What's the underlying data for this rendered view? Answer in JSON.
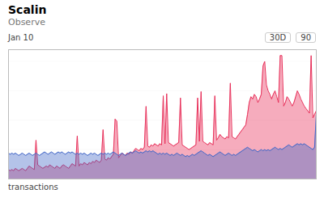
{
  "chart_data": {
    "type": "area",
    "title": "Scalin",
    "subtitle": "Observe",
    "ylabel": "transactions",
    "annotations": [
      "Jan 10",
      "30D",
      "90"
    ],
    "series": [
      {
        "color": "#e8305a",
        "values": [
          0.08,
          0.07,
          0.08,
          0.07,
          0.09,
          0.08,
          0.07,
          0.08,
          0.09,
          0.08,
          0.07,
          0.09,
          0.11,
          0.1,
          0.09,
          0.08,
          0.33,
          0.12,
          0.11,
          0.1,
          0.09,
          0.1,
          0.11,
          0.1,
          0.12,
          0.11,
          0.1,
          0.09,
          0.11,
          0.1,
          0.09,
          0.11,
          0.12,
          0.11,
          0.1,
          0.09,
          0.11,
          0.13,
          0.12,
          0.11,
          0.366,
          0.11,
          0.13,
          0.12,
          0.14,
          0.13,
          0.12,
          0.14,
          0.13,
          0.15,
          0.14,
          0.16,
          0.15,
          0.14,
          0.16,
          0.42,
          0.17,
          0.16,
          0.18,
          0.17,
          0.19,
          0.21,
          0.51,
          0.492,
          0.18,
          0.2,
          0.22,
          0.21,
          0.2,
          0.22,
          0.21,
          0.23,
          0.22,
          0.24,
          0.26,
          0.25,
          0.24,
          0.26,
          0.25,
          0.27,
          0.618,
          0.28,
          0.27,
          0.29,
          0.28,
          0.3,
          0.29,
          0.28,
          0.3,
          0.29,
          0.708,
          0.3,
          0.726,
          0.31,
          0.3,
          0.29,
          0.28,
          0.29,
          0.3,
          0.31,
          0.69,
          0.29,
          0.28,
          0.27,
          0.26,
          0.25,
          0.26,
          0.27,
          0.28,
          0.29,
          0.69,
          0.32,
          0.744,
          0.32,
          0.31,
          0.3,
          0.29,
          0.31,
          0.3,
          0.29,
          0.708,
          0.33,
          0.35,
          0.38,
          0.36,
          0.35,
          0.34,
          0.36,
          0.35,
          0.816,
          0.36,
          0.35,
          0.34,
          0.36,
          0.38,
          0.4,
          0.42,
          0.44,
          0.46,
          0.55,
          0.65,
          0.7,
          0.68,
          0.72,
          0.7,
          0.65,
          0.68,
          0.72,
          0.96,
          1.0,
          0.8,
          0.75,
          0.72,
          0.68,
          0.72,
          0.75,
          0.7,
          0.65,
          1.05,
          1.05,
          0.62,
          0.65,
          0.7,
          0.68,
          0.65,
          0.62,
          0.65,
          0.7,
          0.75,
          0.72,
          0.68,
          0.65,
          0.62,
          0.6,
          0.58,
          0.56,
          1.05,
          0.52,
          0.55,
          0.58
        ]
      },
      {
        "color": "#4468c8",
        "values": [
          0.22,
          0.21,
          0.22,
          0.21,
          0.22,
          0.21,
          0.2,
          0.21,
          0.22,
          0.21,
          0.2,
          0.21,
          0.22,
          0.21,
          0.2,
          0.21,
          0.22,
          0.21,
          0.2,
          0.21,
          0.22,
          0.23,
          0.22,
          0.21,
          0.22,
          0.23,
          0.22,
          0.21,
          0.22,
          0.23,
          0.22,
          0.23,
          0.22,
          0.21,
          0.22,
          0.23,
          0.22,
          0.23,
          0.22,
          0.21,
          0.22,
          0.21,
          0.22,
          0.21,
          0.22,
          0.21,
          0.2,
          0.21,
          0.22,
          0.21,
          0.22,
          0.21,
          0.2,
          0.21,
          0.22,
          0.21,
          0.22,
          0.21,
          0.22,
          0.21,
          0.22,
          0.23,
          0.22,
          0.21,
          0.2,
          0.21,
          0.22,
          0.21,
          0.2,
          0.21,
          0.22,
          0.23,
          0.22,
          0.23,
          0.24,
          0.23,
          0.22,
          0.23,
          0.22,
          0.23,
          0.24,
          0.23,
          0.24,
          0.23,
          0.24,
          0.23,
          0.22,
          0.21,
          0.22,
          0.21,
          0.22,
          0.21,
          0.22,
          0.21,
          0.2,
          0.21,
          0.2,
          0.21,
          0.22,
          0.21,
          0.2,
          0.21,
          0.2,
          0.19,
          0.2,
          0.19,
          0.2,
          0.21,
          0.2,
          0.21,
          0.22,
          0.23,
          0.24,
          0.23,
          0.22,
          0.21,
          0.2,
          0.21,
          0.2,
          0.19,
          0.2,
          0.21,
          0.22,
          0.23,
          0.22,
          0.21,
          0.2,
          0.21,
          0.22,
          0.21,
          0.2,
          0.21,
          0.2,
          0.21,
          0.22,
          0.23,
          0.24,
          0.25,
          0.26,
          0.27,
          0.26,
          0.25,
          0.24,
          0.25,
          0.24,
          0.23,
          0.24,
          0.25,
          0.24,
          0.25,
          0.24,
          0.25,
          0.24,
          0.25,
          0.26,
          0.27,
          0.26,
          0.25,
          0.26,
          0.25,
          0.26,
          0.27,
          0.28,
          0.29,
          0.28,
          0.27,
          0.28,
          0.29,
          0.3,
          0.29,
          0.3,
          0.29,
          0.3,
          0.29,
          0.28,
          0.27,
          0.26,
          0.25,
          0.27,
          0.55
        ]
      }
    ],
    "xlim": [
      0,
      179
    ],
    "ylim": [
      0,
      1.1
    ],
    "yticks": [
      0.25,
      0.5,
      0.75,
      1.0
    ],
    "grid": true,
    "tick_labels": false
  }
}
